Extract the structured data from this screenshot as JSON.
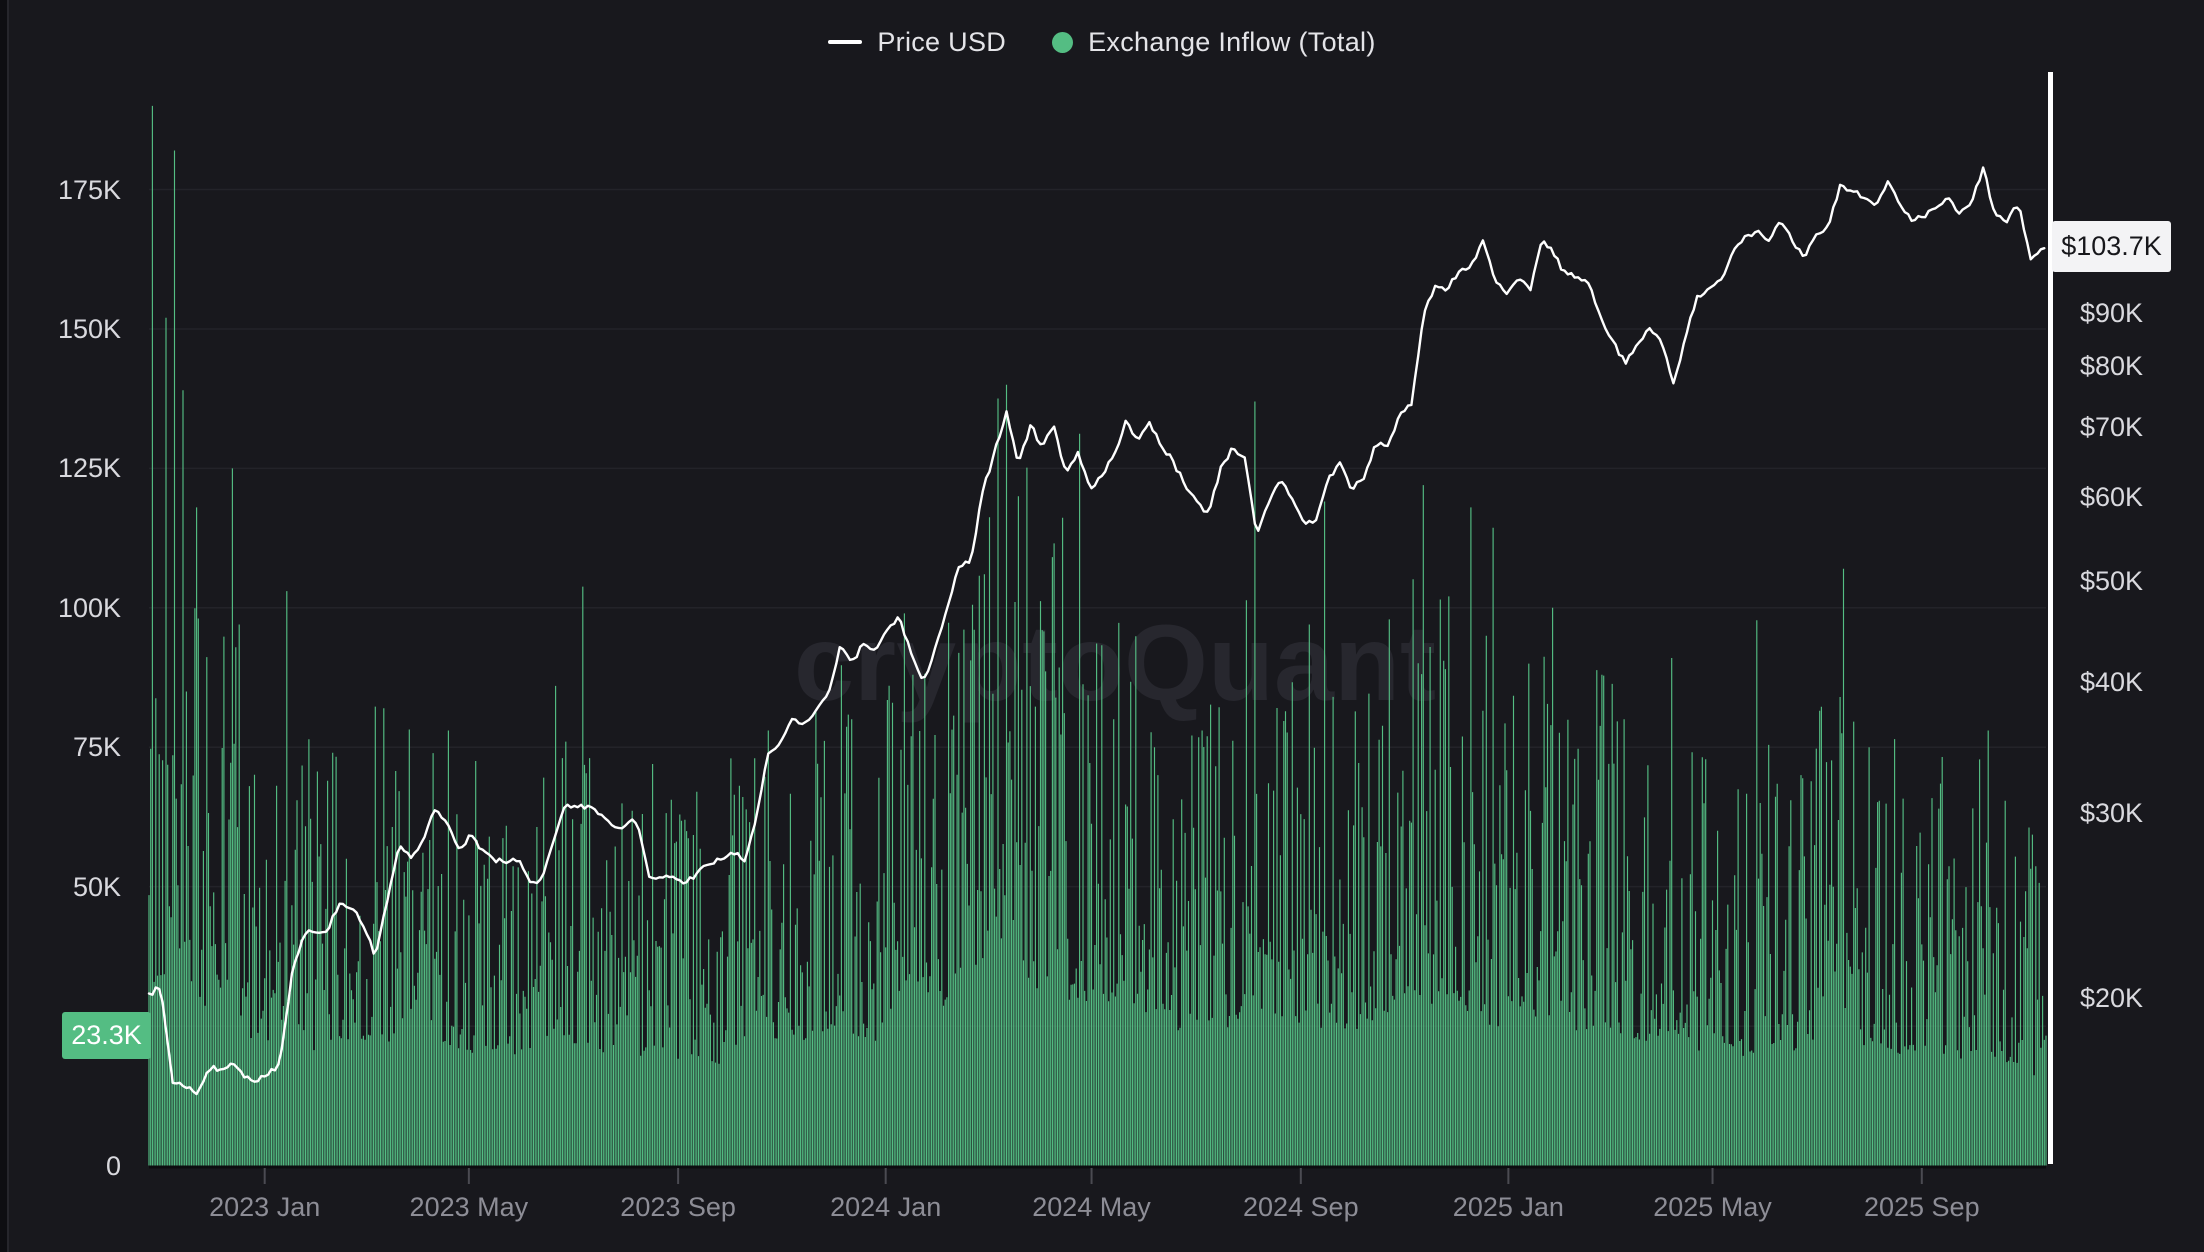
{
  "legend": {
    "price_label": "Price USD",
    "inflow_label": "Exchange Inflow (Total)"
  },
  "watermark": "cryptoQuant",
  "badges": {
    "inflow_current": "23.3K",
    "price_current": "$103.7K"
  },
  "colors": {
    "background": "#18181d",
    "bars": "#54bd83",
    "price_line": "#ffffff",
    "gridline": "#232329",
    "y_label": "#d9d9de",
    "x_label": "#8d8d96",
    "watermark": "#27272e",
    "price_badge_bg": "#f3f3f5",
    "crosshair_line": "#ffffff",
    "tick_mark": "#4b4b52",
    "baseline": "#0c0c0f"
  },
  "chart_data": {
    "type": "mixed",
    "title": "",
    "legend_position": "top-center",
    "grid": "horizontal-left-axis",
    "start_date": "2022-10-25",
    "interval_days": 7,
    "total_days": 1115,
    "axes": {
      "left": {
        "label": "Exchange Inflow (Total), K BTC",
        "scale": "linear",
        "ylim": [
          0,
          191.5
        ],
        "tick_values": [
          175,
          150,
          125,
          100,
          75,
          50,
          0
        ],
        "tick_labels": [
          "175K",
          "150K",
          "125K",
          "100K",
          "75K",
          "50K",
          "0"
        ],
        "gridline_values": [
          175,
          150,
          125,
          100,
          75,
          50,
          25
        ],
        "current_value": 23.3
      },
      "right": {
        "label": "Price USD",
        "scale": "log",
        "tick_values": [
          90,
          80,
          70,
          60,
          50,
          40,
          30,
          20
        ],
        "tick_labels": [
          "$90K",
          "$80K",
          "$70K",
          "$60K",
          "$50K",
          "$40K",
          "$30K",
          "$20K"
        ],
        "current_value": 103.7
      },
      "x": {
        "tick_labels": [
          "2023 Jan",
          "2023 May",
          "2023 Sep",
          "2024 Jan",
          "2024 May",
          "2024 Sep",
          "2025 Jan",
          "2025 May",
          "2025 Sep"
        ],
        "tick_dates": [
          "2023-01-01",
          "2023-05-01",
          "2023-09-01",
          "2024-01-01",
          "2024-05-01",
          "2024-09-01",
          "2025-01-01",
          "2025-05-01",
          "2025-09-01"
        ]
      }
    },
    "series": [
      {
        "name": "Price USD",
        "type": "line",
        "axis": "right",
        "unit": "K USD",
        "color": "#ffffff",
        "weekly_values": [
          20.2,
          20.4,
          16.6,
          16.5,
          16.2,
          17.1,
          17.1,
          17.4,
          16.8,
          16.6,
          16.9,
          17.4,
          21.1,
          23.0,
          23.1,
          23.2,
          24.6,
          24.4,
          23.4,
          21.9,
          24.7,
          27.9,
          27.2,
          28.2,
          30.2,
          29.4,
          27.8,
          28.6,
          27.7,
          27.0,
          26.9,
          27.1,
          25.8,
          25.9,
          28.3,
          30.6,
          30.4,
          30.5,
          29.9,
          29.2,
          29.2,
          29.5,
          26.1,
          26.0,
          26.1,
          25.7,
          26.3,
          26.8,
          27.1,
          27.5,
          27.0,
          29.7,
          34.2,
          34.9,
          36.9,
          36.4,
          37.6,
          38.8,
          43.2,
          41.7,
          43.5,
          42.8,
          44.9,
          46.2,
          42.6,
          39.9,
          43.1,
          46.8,
          51.5,
          52.0,
          60.8,
          66.5,
          72.5,
          64.5,
          70.3,
          67.2,
          70.1,
          63.3,
          66.3,
          61.2,
          62.9,
          65.7,
          71.0,
          68.1,
          70.8,
          67.2,
          65.0,
          61.4,
          59.5,
          57.9,
          64.2,
          67.0,
          65.5,
          55.1,
          59.2,
          62.5,
          59.8,
          56.6,
          57.1,
          62.5,
          64.8,
          61.0,
          62.5,
          67.5,
          67.2,
          71.8,
          73.5,
          89.5,
          95.5,
          94.5,
          98.5,
          99.8,
          105.5,
          96.5,
          93.8,
          97.0,
          94.6,
          106.1,
          102.0,
          98.0,
          97.3,
          95.7,
          88.6,
          84.4,
          80.5,
          83.9,
          87.0,
          84.4,
          77.1,
          85.3,
          93.4,
          94.6,
          96.8,
          103.2,
          106.5,
          108.0,
          105.4,
          110.0,
          105.2,
          101.2,
          106.9,
          108.6,
          119.2,
          117.5,
          115.8,
          114.2,
          120.1,
          113.9,
          110.1,
          110.8,
          113.2,
          115.9,
          111.9,
          114.1,
          123.8,
          111.5,
          109.8,
          114.3,
          101.2,
          103.7
        ],
        "last_value": 103.7
      },
      {
        "name": "Exchange Inflow (Total)",
        "type": "bar",
        "axis": "left",
        "unit": "K BTC",
        "color": "#54bd83",
        "weekly_base": [
          50,
          62,
          85,
          72,
          60,
          55,
          52,
          56,
          48,
          44,
          42,
          45,
          50,
          46,
          40,
          42,
          44,
          40,
          44,
          48,
          45,
          41,
          45,
          50,
          47,
          43,
          41,
          40,
          42,
          38,
          36,
          37,
          38,
          44,
          49,
          46,
          43,
          41,
          39,
          37,
          36,
          37,
          44,
          41,
          37,
          35,
          36,
          38,
          36,
          39,
          43,
          49,
          46,
          45,
          47,
          45,
          47,
          49,
          51,
          47,
          45,
          44,
          52,
          62,
          58,
          50,
          52,
          56,
          60,
          66,
          74,
          80,
          72,
          66,
          62,
          60,
          64,
          60,
          57,
          54,
          56,
          60,
          58,
          54,
          52,
          50,
          48,
          47,
          48,
          52,
          50,
          47,
          60,
          56,
          52,
          49,
          50,
          52,
          49,
          47,
          48,
          50,
          47,
          48,
          54,
          60,
          64,
          60,
          57,
          60,
          58,
          54,
          51,
          49,
          52,
          56,
          54,
          52,
          50,
          50,
          48,
          47,
          52,
          48,
          46,
          44,
          43,
          45,
          47,
          43,
          41,
          42,
          44,
          41,
          39,
          41,
          43,
          45,
          41,
          43,
          46,
          48,
          50,
          46,
          43,
          45,
          42,
          40,
          39,
          39,
          41,
          39,
          37,
          40,
          43,
          39,
          37,
          36,
          34,
          28
        ],
        "spikes": [
          [
            "2022-10-27",
            190
          ],
          [
            "2022-11-04",
            152
          ],
          [
            "2022-11-09",
            182
          ],
          [
            "2022-11-14",
            139
          ],
          [
            "2022-11-22",
            118
          ],
          [
            "2022-12-13",
            125
          ],
          [
            "2022-12-17",
            97
          ],
          [
            "2023-01-14",
            103
          ],
          [
            "2023-02-10",
            74
          ],
          [
            "2023-03-12",
            82
          ],
          [
            "2023-04-19",
            78
          ],
          [
            "2023-06-21",
            86
          ],
          [
            "2023-06-27",
            76
          ],
          [
            "2023-08-17",
            72
          ],
          [
            "2023-09-12",
            67
          ],
          [
            "2023-10-02",
            73
          ],
          [
            "2023-10-24",
            78
          ],
          [
            "2023-12-12",
            80
          ],
          [
            "2024-01-12",
            99
          ],
          [
            "2024-01-17",
            88
          ],
          [
            "2024-02-28",
            106
          ],
          [
            "2024-03-12",
            140
          ],
          [
            "2024-03-19",
            120
          ],
          [
            "2024-04-02",
            96
          ],
          [
            "2024-05-14",
            80
          ],
          [
            "2024-06-07",
            75
          ],
          [
            "2024-07-05",
            78
          ],
          [
            "2024-08-05",
            137
          ],
          [
            "2024-09-06",
            97
          ],
          [
            "2024-11-12",
            122
          ],
          [
            "2024-11-25",
            89
          ],
          [
            "2024-12-10",
            118
          ],
          [
            "2024-12-19",
            95
          ],
          [
            "2025-01-13",
            90
          ],
          [
            "2025-01-27",
            100
          ],
          [
            "2025-02-25",
            88
          ],
          [
            "2025-03-10",
            80
          ],
          [
            "2025-04-07",
            91
          ],
          [
            "2025-05-29",
            65
          ],
          [
            "2025-06-22",
            70
          ],
          [
            "2025-07-15",
            84
          ],
          [
            "2025-07-17",
            107
          ],
          [
            "2025-08-01",
            75
          ],
          [
            "2025-10-10",
            78
          ],
          [
            "2025-11-13",
            23.3
          ]
        ],
        "last_value": 23.3
      }
    ]
  },
  "render_hints": {
    "bar_noise": {
      "seed": 42,
      "min_mult": 0.5,
      "square_mult": 1.3,
      "tail_prob": 0.96,
      "tail_mult": 1.4
    },
    "line_jitter": {
      "seed": 7,
      "amplitude": 0.008,
      "sample_step_days": 2
    }
  }
}
